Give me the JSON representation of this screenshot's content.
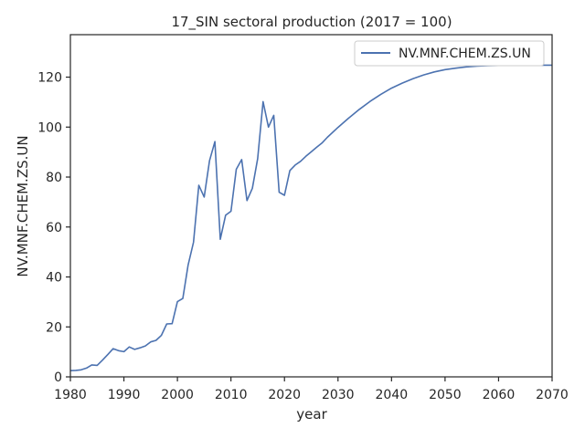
{
  "chart_data": {
    "type": "line",
    "title": "17_SIN sectoral production (2017 = 100)",
    "xlabel": "year",
    "ylabel": "NV.MNF.CHEM.ZS.UN",
    "xlim": [
      1980,
      2070
    ],
    "ylim": [
      0,
      137
    ],
    "xticks": [
      1980,
      1990,
      2000,
      2010,
      2020,
      2030,
      2040,
      2050,
      2060,
      2070
    ],
    "yticks": [
      0,
      20,
      40,
      60,
      80,
      100,
      120
    ],
    "grid": false,
    "legend_position": "top-right",
    "series": [
      {
        "name": "NV.MNF.CHEM.ZS.UN",
        "color": "#4c72b0",
        "x": [
          1980,
          1981,
          1982,
          1983,
          1984,
          1985,
          1986,
          1987,
          1988,
          1989,
          1990,
          1991,
          1992,
          1993,
          1994,
          1995,
          1996,
          1997,
          1998,
          1999,
          2000,
          2001,
          2002,
          2003,
          2004,
          2005,
          2006,
          2007,
          2008,
          2009,
          2010,
          2011,
          2012,
          2013,
          2014,
          2015,
          2016,
          2017,
          2018,
          2019,
          2020,
          2021,
          2022,
          2023,
          2024,
          2025,
          2026,
          2027,
          2028,
          2030,
          2032,
          2034,
          2036,
          2038,
          2040,
          2042,
          2044,
          2046,
          2048,
          2050,
          2052,
          2054,
          2056,
          2058,
          2060,
          2062,
          2064,
          2066,
          2068,
          2070
        ],
        "y": [
          2.5,
          2.6,
          2.8,
          3.5,
          4.8,
          4.6,
          6.7,
          9.0,
          11.3,
          10.5,
          10.1,
          12.0,
          11.0,
          11.6,
          12.4,
          14.0,
          14.6,
          16.6,
          21.2,
          21.3,
          30.1,
          31.4,
          44.8,
          53.9,
          76.7,
          72.0,
          86.5,
          94.2,
          55.1,
          64.7,
          66.3,
          83.1,
          87.0,
          70.6,
          75.5,
          87.4,
          110.2,
          100.0,
          104.7,
          73.9,
          72.7,
          82.6,
          84.8,
          86.3,
          88.3,
          90.1,
          91.9,
          93.6,
          95.9,
          99.9,
          103.6,
          107.1,
          110.3,
          113.1,
          115.6,
          117.6,
          119.4,
          120.9,
          122.1,
          123.0,
          123.6,
          124.1,
          124.4,
          124.6,
          124.7,
          124.8,
          124.8,
          124.8,
          124.8,
          124.8
        ]
      }
    ]
  }
}
